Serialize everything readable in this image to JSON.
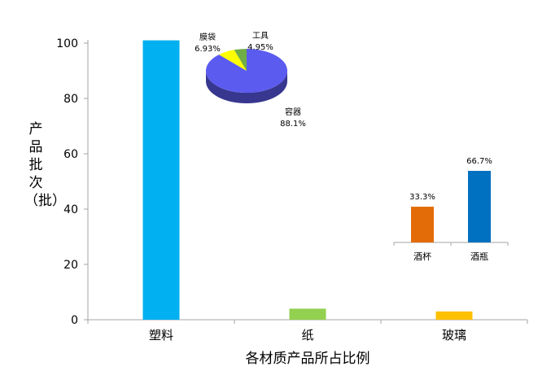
{
  "chart_data": [
    {
      "type": "bar",
      "categories": [
        "塑料",
        "纸",
        "玻璃"
      ],
      "values": [
        101,
        4,
        3
      ],
      "colors": [
        "#00b0f0",
        "#92d050",
        "#ffc000"
      ],
      "xlabel": "各材质产品所占比例",
      "ylabel": "产品批次（批）",
      "ylim": [
        0,
        100
      ],
      "yticks": [
        "0",
        "20",
        "40",
        "60",
        "80",
        "100"
      ],
      "grid": false
    },
    {
      "type": "pie",
      "slices": [
        {
          "label": "容器",
          "value": 88.1,
          "value_label": "88.1%",
          "color": "#5b5bf0"
        },
        {
          "label": "膜袋",
          "value": 6.93,
          "value_label": "6.93%",
          "color": "#ffff00"
        },
        {
          "label": "工具",
          "value": 4.95,
          "value_label": "4.95%",
          "color": "#70ad47"
        }
      ]
    },
    {
      "type": "bar",
      "categories": [
        "酒杯",
        "酒瓶"
      ],
      "values": [
        33.3,
        66.7
      ],
      "value_labels": [
        "33.3%",
        "66.7%"
      ],
      "colors": [
        "#e36c09",
        "#0070c0"
      ]
    }
  ]
}
